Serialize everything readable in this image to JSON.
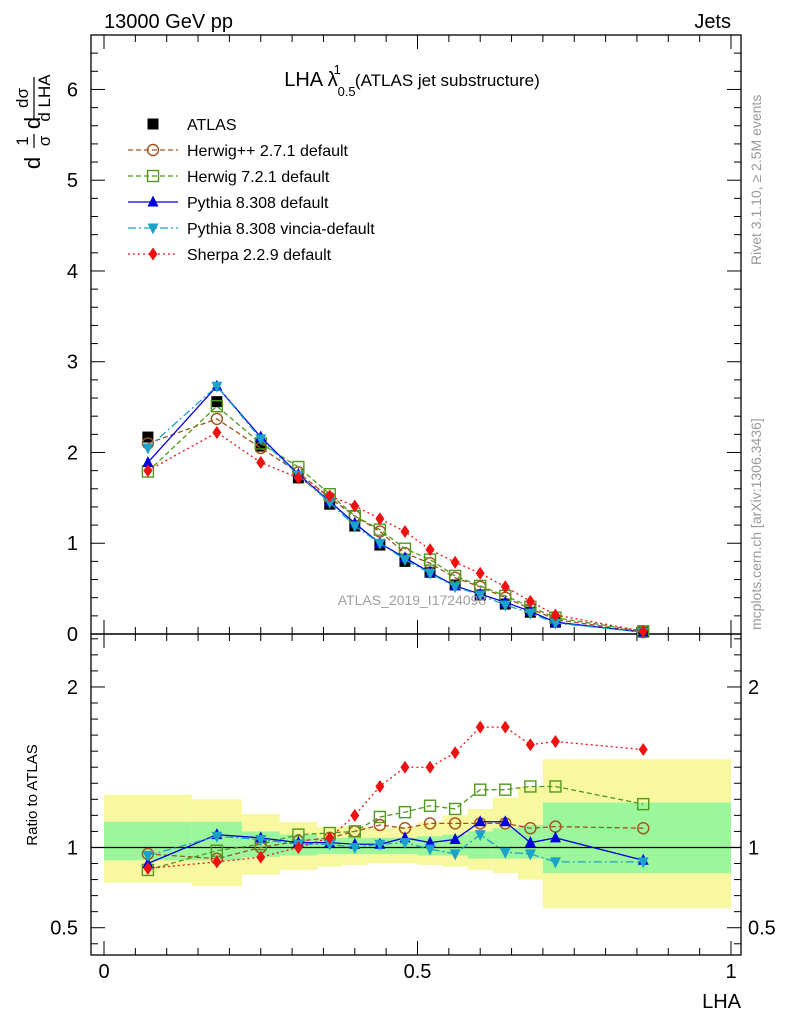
{
  "header": {
    "left": "13000 GeV pp",
    "right": "Jets"
  },
  "side_labels": {
    "rivet": "Rivet 3.1.10, ≥ 2.5M events",
    "mcplots": "mcplots.cern.ch [arXiv:1306.3436]"
  },
  "colors": {
    "atlas": "#000000",
    "herwigpp": "#a0521c",
    "herwig7": "#4f9a1e",
    "pythia": "#0000e0",
    "vincia": "#1aa2c8",
    "sherpa": "#ee1111",
    "band_inner": "#9cf79c",
    "band_outer": "#f8f8a0"
  },
  "chart_data": [
    {
      "type": "line",
      "title": "LHA λ¹₀.₅ (ATLAS jet substructure)",
      "title_parts": {
        "main": "LHA λ",
        "sup": "1",
        "sub": "0.5",
        "rest": "(ATLAS jet substructure)"
      },
      "ylabel_parts": {
        "a": "1",
        "b": "σ",
        "c": "dσ",
        "d": "d LHA",
        "pre": "d"
      },
      "xlabel": "LHA",
      "xlim": [
        0,
        1
      ],
      "ylim": [
        0,
        6.6
      ],
      "yticks": [
        0,
        1,
        2,
        3,
        4,
        5,
        6
      ],
      "watermark": "ATLAS_2019_I1724098",
      "legend_position": "top-left",
      "x": [
        0.07,
        0.18,
        0.25,
        0.31,
        0.36,
        0.4,
        0.44,
        0.48,
        0.52,
        0.56,
        0.6,
        0.64,
        0.68,
        0.72,
        0.86
      ],
      "series": [
        {
          "name": "ATLAS",
          "style": "atlas",
          "values": [
            2.17,
            2.56,
            2.07,
            1.72,
            1.43,
            1.19,
            0.98,
            0.8,
            0.68,
            0.54,
            0.43,
            0.33,
            0.24,
            0.13,
            0.02
          ]
        },
        {
          "name": "Herwig++ 2.7.1 default",
          "style": "herwigpp",
          "values": [
            2.1,
            2.37,
            2.05,
            1.78,
            1.5,
            1.3,
            1.13,
            0.89,
            0.78,
            0.62,
            0.52,
            0.4,
            0.28,
            0.16,
            0.02
          ]
        },
        {
          "name": "Herwig 7.2.1 default",
          "style": "herwig7",
          "values": [
            1.79,
            2.51,
            2.1,
            1.84,
            1.54,
            1.3,
            1.15,
            0.94,
            0.82,
            0.64,
            0.53,
            0.42,
            0.3,
            0.18,
            0.03
          ]
        },
        {
          "name": "Pythia 8.308 default",
          "style": "pythia",
          "values": [
            1.89,
            2.73,
            2.17,
            1.76,
            1.46,
            1.22,
            1.0,
            0.84,
            0.68,
            0.53,
            0.44,
            0.35,
            0.25,
            0.13,
            0.02
          ]
        },
        {
          "name": "Pythia 8.308 vincia-default",
          "style": "vincia",
          "values": [
            2.05,
            2.73,
            2.15,
            1.75,
            1.45,
            1.19,
            1.0,
            0.82,
            0.67,
            0.52,
            0.43,
            0.32,
            0.23,
            0.12,
            0.02
          ]
        },
        {
          "name": "Sherpa 2.2.9 default",
          "style": "sherpa",
          "values": [
            1.8,
            2.22,
            1.89,
            1.72,
            1.52,
            1.41,
            1.27,
            1.13,
            0.93,
            0.79,
            0.67,
            0.52,
            0.36,
            0.21,
            0.03
          ]
        }
      ]
    },
    {
      "type": "line",
      "ylabel": "Ratio to ATLAS",
      "xlabel": "LHA",
      "xlim": [
        0,
        1
      ],
      "ylim": [
        0.33,
        2.33
      ],
      "yticks": [
        0.5,
        1,
        2
      ],
      "xticks": [
        0,
        0.5,
        1
      ],
      "x": [
        0.07,
        0.18,
        0.25,
        0.31,
        0.36,
        0.4,
        0.44,
        0.48,
        0.52,
        0.56,
        0.6,
        0.64,
        0.68,
        0.72,
        0.86
      ],
      "bands": {
        "edges": [
          0,
          0.14,
          0.22,
          0.28,
          0.34,
          0.38,
          0.42,
          0.46,
          0.5,
          0.54,
          0.58,
          0.62,
          0.66,
          0.7,
          0.74,
          1.0
        ],
        "inner_lo": [
          0.92,
          0.92,
          0.94,
          0.95,
          0.96,
          0.96,
          0.96,
          0.96,
          0.95,
          0.95,
          0.93,
          0.93,
          0.93,
          0.84,
          0.84
        ],
        "inner_hi": [
          1.16,
          1.16,
          1.1,
          1.08,
          1.06,
          1.06,
          1.06,
          1.06,
          1.07,
          1.08,
          1.1,
          1.12,
          1.14,
          1.28,
          1.28
        ],
        "outer_lo": [
          0.78,
          0.76,
          0.83,
          0.86,
          0.88,
          0.89,
          0.9,
          0.9,
          0.89,
          0.88,
          0.86,
          0.84,
          0.8,
          0.62,
          0.62
        ],
        "outer_hi": [
          1.33,
          1.3,
          1.21,
          1.16,
          1.13,
          1.13,
          1.12,
          1.13,
          1.16,
          1.2,
          1.24,
          1.31,
          1.38,
          1.55,
          1.55
        ]
      },
      "series": [
        {
          "name": "Herwig++ 2.7.1 default",
          "style": "herwigpp",
          "values": [
            0.96,
            0.93,
            1.0,
            1.04,
            1.06,
            1.1,
            1.14,
            1.12,
            1.15,
            1.15,
            1.15,
            1.15,
            1.12,
            1.13,
            1.12
          ]
        },
        {
          "name": "Herwig 7.2.1 default",
          "style": "herwig7",
          "values": [
            0.86,
            0.98,
            1.02,
            1.08,
            1.09,
            1.1,
            1.19,
            1.22,
            1.26,
            1.24,
            1.36,
            1.36,
            1.38,
            1.38,
            1.27
          ]
        },
        {
          "name": "Pythia 8.308 default",
          "style": "pythia",
          "values": [
            0.9,
            1.08,
            1.06,
            1.03,
            1.03,
            1.02,
            1.02,
            1.06,
            1.03,
            1.05,
            1.16,
            1.16,
            1.03,
            1.06,
            0.92
          ]
        },
        {
          "name": "Pythia 8.308 vincia-default",
          "style": "vincia",
          "values": [
            0.95,
            1.07,
            1.05,
            1.02,
            1.02,
            1.0,
            1.02,
            1.03,
            0.99,
            0.96,
            1.08,
            0.97,
            0.96,
            0.91,
            0.91
          ]
        },
        {
          "name": "Sherpa 2.2.9 default",
          "style": "sherpa",
          "values": [
            0.87,
            0.91,
            0.94,
            1.0,
            1.06,
            1.2,
            1.38,
            1.5,
            1.5,
            1.59,
            1.75,
            1.75,
            1.64,
            1.66,
            1.61
          ]
        }
      ]
    }
  ]
}
